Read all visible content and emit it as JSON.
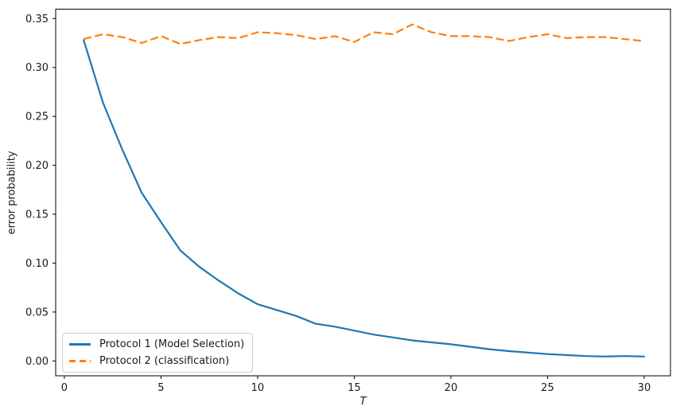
{
  "chart_data": {
    "type": "line",
    "title": "",
    "xlabel": "T",
    "ylabel": "error probability",
    "grid": false,
    "legend_position": "lower left",
    "xlim": [
      -0.45,
      31.36
    ],
    "ylim": [
      -0.0152,
      0.3596
    ],
    "x_ticks": [
      0,
      5,
      10,
      15,
      20,
      25,
      30
    ],
    "x_tick_labels": [
      "0",
      "5",
      "10",
      "15",
      "20",
      "25",
      "30"
    ],
    "y_ticks": [
      0.0,
      0.05,
      0.1,
      0.15,
      0.2,
      0.25,
      0.3,
      0.35
    ],
    "y_tick_labels": [
      "0.00",
      "0.05",
      "0.10",
      "0.15",
      "0.20",
      "0.25",
      "0.30",
      "0.35"
    ],
    "x": [
      1,
      2,
      3,
      4,
      5,
      6,
      7,
      8,
      9,
      10,
      11,
      12,
      13,
      14,
      15,
      16,
      17,
      18,
      19,
      20,
      21,
      22,
      23,
      24,
      25,
      26,
      27,
      28,
      29,
      30
    ],
    "series": [
      {
        "name": "Protocol 1 (Model Selection)",
        "color": "#1f77b4",
        "style": "solid",
        "values": [
          0.328,
          0.264,
          0.216,
          0.172,
          0.142,
          0.113,
          0.096,
          0.082,
          0.069,
          0.058,
          0.052,
          0.046,
          0.038,
          0.035,
          0.031,
          0.027,
          0.024,
          0.021,
          0.019,
          0.017,
          0.0145,
          0.012,
          0.01,
          0.0085,
          0.007,
          0.006,
          0.005,
          0.0045,
          0.005,
          0.0045
        ]
      },
      {
        "name": "Protocol 2 (classification)",
        "color": "#ff7f0e",
        "style": "dashed",
        "values": [
          0.329,
          0.334,
          0.331,
          0.325,
          0.332,
          0.324,
          0.328,
          0.331,
          0.33,
          0.336,
          0.335,
          0.333,
          0.329,
          0.332,
          0.326,
          0.336,
          0.334,
          0.344,
          0.336,
          0.332,
          0.332,
          0.331,
          0.327,
          0.331,
          0.334,
          0.33,
          0.331,
          0.331,
          0.329,
          0.327
        ]
      }
    ]
  }
}
